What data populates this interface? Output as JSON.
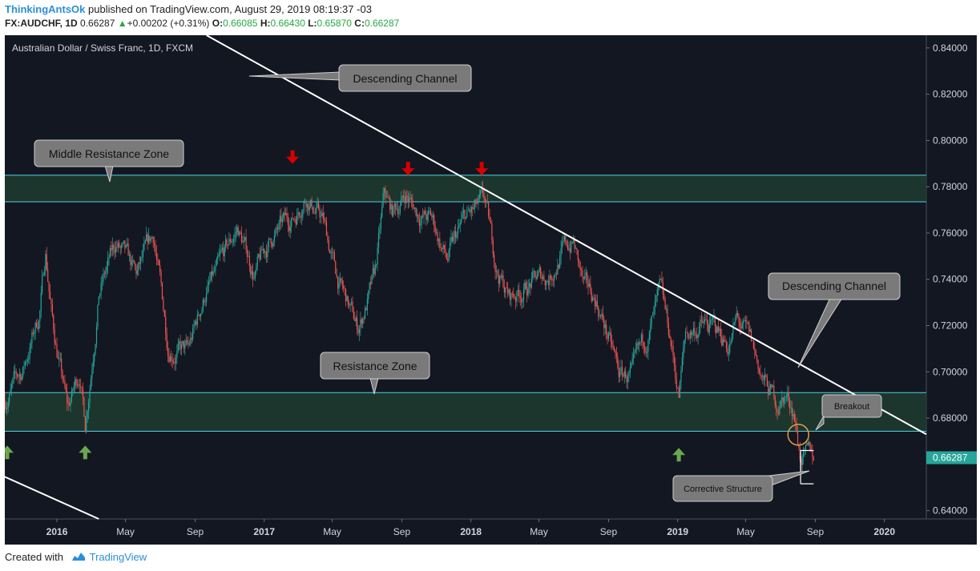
{
  "header": {
    "author": "ThinkingAntsOk",
    "published_text": "published on TradingView.com, August 29, 2019 08:19:37 -03",
    "symbol": "FX:AUDCHF, 1D",
    "last": "0.66287",
    "change": "+0.00202 (+0.31%)",
    "open_label": "O:",
    "open": "0.66085",
    "high_label": "H:",
    "high": "0.66430",
    "low_label": "L:",
    "low": "0.65870",
    "close_label": "C:",
    "close": "0.66287"
  },
  "footer": {
    "created_with": "Created with",
    "brand": "TradingView"
  },
  "colors": {
    "background": "#131722",
    "up_candle": "#26a69a",
    "down_candle": "#ef5350",
    "zone_fill": "#1e3a2f",
    "zone_line": "#4dd0e1",
    "trendline": "#ffffff",
    "arrow_down": "#d50000",
    "arrow_up": "#6aa84f",
    "price_badge": "#26a69a",
    "callout_bg": "#7a7a7a",
    "circle": "#e0a040"
  },
  "chart_data": {
    "type": "candlestick",
    "title": "Australian Dollar / Swiss Franc, 1D, FXCM",
    "y_ticks": [
      0.84,
      0.82,
      0.8,
      0.78,
      0.76,
      0.74,
      0.72,
      0.7,
      0.68,
      0.64
    ],
    "y_tick_labels": [
      "0.84000",
      "0.82000",
      "0.80000",
      "0.78000",
      "0.76000",
      "0.74000",
      "0.72000",
      "0.70000",
      "0.68000",
      "0.64000"
    ],
    "ylim": [
      0.6364,
      0.8455
    ],
    "x_range": [
      "2015-10-01",
      "2020-03-15"
    ],
    "x_ticks": [
      {
        "date": "2016-01-01",
        "label": "2016",
        "bold": true
      },
      {
        "date": "2016-05-01",
        "label": "May",
        "bold": false
      },
      {
        "date": "2016-09-01",
        "label": "Sep",
        "bold": false
      },
      {
        "date": "2017-01-01",
        "label": "2017",
        "bold": true
      },
      {
        "date": "2017-05-01",
        "label": "May",
        "bold": false
      },
      {
        "date": "2017-09-01",
        "label": "Sep",
        "bold": false
      },
      {
        "date": "2018-01-01",
        "label": "2018",
        "bold": true
      },
      {
        "date": "2018-05-01",
        "label": "May",
        "bold": false
      },
      {
        "date": "2018-09-01",
        "label": "Sep",
        "bold": false
      },
      {
        "date": "2019-01-01",
        "label": "2019",
        "bold": true
      },
      {
        "date": "2019-05-01",
        "label": "May",
        "bold": false
      },
      {
        "date": "2019-09-01",
        "label": "Sep",
        "bold": false
      },
      {
        "date": "2020-01-01",
        "label": "2020",
        "bold": true
      }
    ],
    "last_price": 0.66287,
    "last_price_label": "0.66287",
    "price_path": [
      [
        "2015-10-01",
        0.688
      ],
      [
        "2015-11-01",
        0.7
      ],
      [
        "2015-12-01",
        0.725
      ],
      [
        "2015-12-12",
        0.752
      ],
      [
        "2015-12-25",
        0.72
      ],
      [
        "2016-01-20",
        0.683
      ],
      [
        "2016-02-10",
        0.7
      ],
      [
        "2016-02-20",
        0.678
      ],
      [
        "2016-03-15",
        0.735
      ],
      [
        "2016-04-15",
        0.755
      ],
      [
        "2016-05-20",
        0.74
      ],
      [
        "2016-06-20",
        0.758
      ],
      [
        "2016-07-15",
        0.712
      ],
      [
        "2016-08-20",
        0.708
      ],
      [
        "2016-09-20",
        0.735
      ],
      [
        "2016-10-10",
        0.742
      ],
      [
        "2016-11-15",
        0.762
      ],
      [
        "2016-12-15",
        0.742
      ],
      [
        "2017-01-15",
        0.758
      ],
      [
        "2017-02-25",
        0.768
      ],
      [
        "2017-03-15",
        0.778
      ],
      [
        "2017-04-15",
        0.765
      ],
      [
        "2017-05-10",
        0.74
      ],
      [
        "2017-06-15",
        0.718
      ],
      [
        "2017-07-15",
        0.74
      ],
      [
        "2017-08-01",
        0.775
      ],
      [
        "2017-08-15",
        0.768
      ],
      [
        "2017-09-08",
        0.777
      ],
      [
        "2017-09-25",
        0.77
      ],
      [
        "2017-10-25",
        0.765
      ],
      [
        "2017-11-20",
        0.748
      ],
      [
        "2017-12-20",
        0.765
      ],
      [
        "2018-01-25",
        0.772
      ],
      [
        "2018-02-15",
        0.745
      ],
      [
        "2018-03-10",
        0.732
      ],
      [
        "2018-04-15",
        0.738
      ],
      [
        "2018-05-20",
        0.742
      ],
      [
        "2018-06-10",
        0.752
      ],
      [
        "2018-07-01",
        0.756
      ],
      [
        "2018-07-20",
        0.735
      ],
      [
        "2018-08-10",
        0.731
      ],
      [
        "2018-08-25",
        0.72
      ],
      [
        "2018-09-20",
        0.698
      ],
      [
        "2018-10-15",
        0.698
      ],
      [
        "2018-11-15",
        0.72
      ],
      [
        "2018-12-01",
        0.732
      ],
      [
        "2018-12-20",
        0.712
      ],
      [
        "2019-01-03",
        0.69
      ],
      [
        "2019-01-15",
        0.716
      ],
      [
        "2019-02-10",
        0.72
      ],
      [
        "2019-03-10",
        0.718
      ],
      [
        "2019-04-01",
        0.712
      ],
      [
        "2019-04-15",
        0.722
      ],
      [
        "2019-05-10",
        0.712
      ],
      [
        "2019-06-01",
        0.696
      ],
      [
        "2019-06-25",
        0.686
      ],
      [
        "2019-07-10",
        0.69
      ],
      [
        "2019-07-25",
        0.684
      ],
      [
        "2019-08-05",
        0.665
      ],
      [
        "2019-08-15",
        0.662
      ],
      [
        "2019-08-29",
        0.66287
      ]
    ],
    "annotations": {
      "middle_resistance_zone": {
        "low": 0.7735,
        "high": 0.785,
        "label": "Middle Resistance Zone"
      },
      "resistance_zone": {
        "low": 0.6743,
        "high": 0.691,
        "label": "Resistance Zone"
      },
      "trendline_1": {
        "label": "Descending Channel",
        "p1": [
          "2016-09-21",
          0.8455
        ],
        "p2": [
          "2020-03-15",
          0.673
        ]
      },
      "trendline_2": {
        "p1": [
          "2015-10-01",
          0.6546
        ],
        "p2": [
          "2016-03-15",
          0.6364
        ]
      },
      "descending_channel_label_2": "Descending Channel",
      "breakout_label": "Breakout",
      "breakout_point": [
        "2019-08-02",
        0.6728
      ],
      "corrective_structure_label": "Corrective Structure",
      "corrective_box": {
        "x1": "2019-08-06",
        "x2": "2019-08-29",
        "top": 0.666,
        "bottom": 0.6516
      },
      "down_arrows": [
        [
          "2017-02-20",
          0.793
        ],
        [
          "2017-09-12",
          0.788
        ],
        [
          "2018-01-20",
          0.788
        ]
      ],
      "up_arrows": [
        [
          "2015-10-01",
          0.665
        ],
        [
          "2016-02-20",
          0.665
        ],
        [
          "2019-01-03",
          0.664
        ]
      ]
    }
  }
}
